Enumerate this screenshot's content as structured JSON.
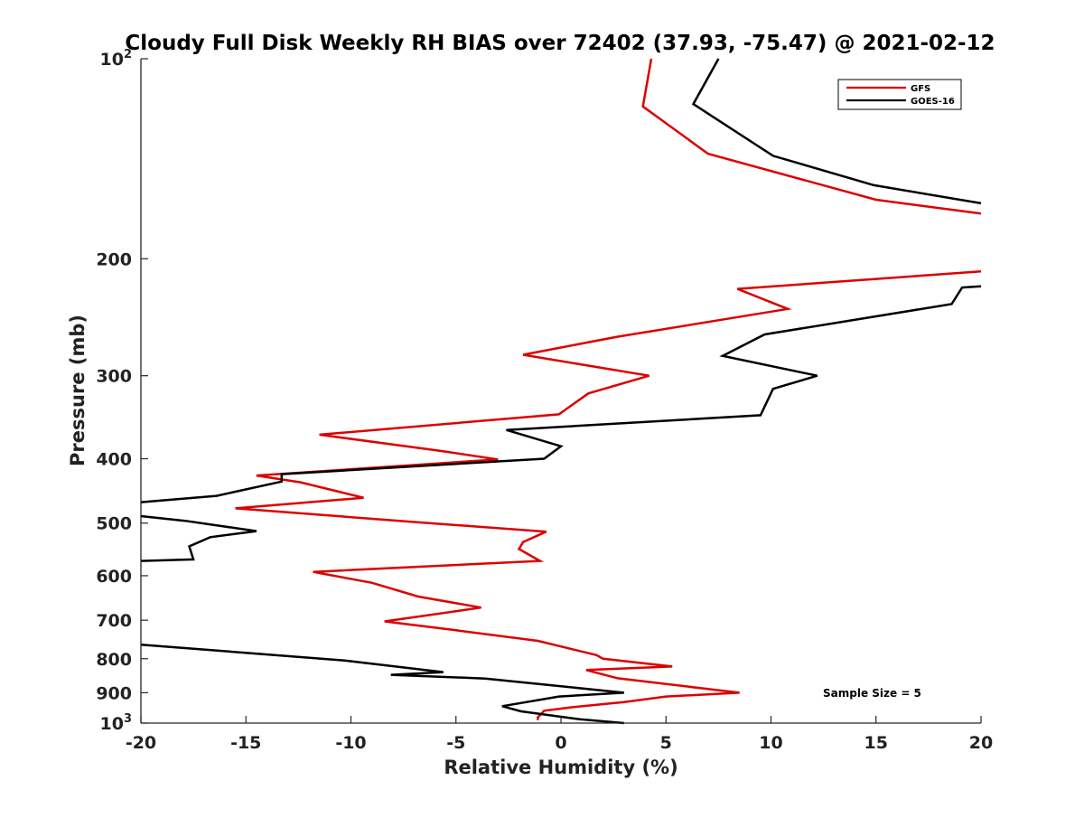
{
  "chart_data": {
    "type": "line",
    "title": "Cloudy Full Disk Weekly RH BIAS over 72402 (37.93, -75.47) @ 2021-02-12",
    "xlabel": "Relative Humidity (%)",
    "ylabel": "Pressure (mb)",
    "xlim": [
      -20,
      20
    ],
    "ylim": [
      1000,
      100
    ],
    "y_scale": "log",
    "y_reversed": true,
    "grid": false,
    "legend_position": "top-right",
    "annotation": "Sample Size = 5",
    "x_ticks": [
      -20,
      -15,
      -10,
      -5,
      0,
      5,
      10,
      15,
      20
    ],
    "x_tick_labels": [
      "-20",
      "-15",
      "-10",
      "-5",
      "0",
      "5",
      "10",
      "15",
      "20"
    ],
    "y_ticks": [
      100,
      200,
      300,
      400,
      500,
      600,
      700,
      800,
      900,
      1000
    ],
    "y_tick_labels": [
      {
        "text": "10",
        "sup": "2"
      },
      {
        "text": "200"
      },
      {
        "text": "300"
      },
      {
        "text": "400"
      },
      {
        "text": "500"
      },
      {
        "text": "600"
      },
      {
        "text": "700"
      },
      {
        "text": "800"
      },
      {
        "text": "900"
      },
      {
        "text": "10",
        "sup": "3"
      }
    ],
    "series": [
      {
        "name": "GFS",
        "color": "#dd0000",
        "segments": [
          [
            [
              4.3,
              100
            ],
            [
              3.9,
              118
            ],
            [
              7.0,
              139
            ],
            [
              15.0,
              163
            ],
            [
              20.0,
              171
            ]
          ],
          [
            [
              20.0,
              209
            ],
            [
              8.4,
              222
            ],
            [
              10.8,
              238
            ],
            [
              2.7,
              262
            ],
            [
              -1.8,
              279
            ],
            [
              4.2,
              300
            ],
            [
              1.3,
              319
            ],
            [
              -0.1,
              343
            ],
            [
              -11.5,
              368
            ],
            [
              -5.8,
              389
            ],
            [
              -3.0,
              401
            ],
            [
              -14.5,
              424
            ],
            [
              -12.4,
              434
            ],
            [
              -9.4,
              458
            ],
            [
              -15.5,
              475
            ],
            [
              -7.0,
              498
            ],
            [
              -0.7,
              515
            ],
            [
              -1.8,
              534
            ],
            [
              -2.0,
              547
            ],
            [
              -1.0,
              570
            ],
            [
              -11.8,
              592
            ],
            [
              -9.0,
              615
            ],
            [
              -6.8,
              645
            ],
            [
              -3.8,
              670
            ],
            [
              -8.4,
              703
            ],
            [
              -5.0,
              725
            ],
            [
              -1.1,
              752
            ],
            [
              1.7,
              790
            ],
            [
              2.0,
              800
            ],
            [
              5.3,
              822
            ],
            [
              1.2,
              832
            ],
            [
              2.7,
              856
            ],
            [
              8.5,
              900
            ],
            [
              5.0,
              912
            ],
            [
              3.0,
              930
            ],
            [
              0.6,
              946
            ],
            [
              -0.8,
              958
            ],
            [
              -1.1,
              980
            ],
            [
              -1.1,
              990
            ]
          ]
        ]
      },
      {
        "name": "GOES-16",
        "color": "#000000",
        "segments": [
          [
            [
              7.5,
              100
            ],
            [
              6.3,
              117
            ],
            [
              10.1,
              140
            ],
            [
              14.9,
              155
            ],
            [
              20.0,
              165
            ]
          ],
          [
            [
              20.0,
              220
            ],
            [
              19.1,
              221
            ],
            [
              18.6,
              234
            ],
            [
              9.7,
              260
            ],
            [
              7.7,
              280
            ],
            [
              12.2,
              300
            ],
            [
              10.1,
              314
            ],
            [
              9.5,
              344
            ],
            [
              -2.6,
              362
            ],
            [
              0.0,
              383
            ],
            [
              -0.8,
              400
            ],
            [
              -13.3,
              422
            ],
            [
              -13.3,
              433
            ],
            [
              -16.4,
              455
            ],
            [
              -20.0,
              465
            ]
          ],
          [
            [
              -20.0,
              488
            ],
            [
              -17.9,
              496
            ],
            [
              -14.5,
              514
            ],
            [
              -16.7,
              525
            ],
            [
              -17.7,
              542
            ],
            [
              -17.5,
              567
            ],
            [
              -20.0,
              570
            ]
          ],
          [
            [
              -20.0,
              762
            ],
            [
              -10.3,
              805
            ],
            [
              -5.6,
              838
            ],
            [
              -8.1,
              846
            ],
            [
              -3.6,
              857
            ],
            [
              3.0,
              900
            ],
            [
              -0.1,
              912
            ],
            [
              -2.8,
              943
            ],
            [
              -1.9,
              960
            ],
            [
              0.9,
              987
            ],
            [
              3.0,
              1000
            ]
          ]
        ]
      }
    ]
  }
}
